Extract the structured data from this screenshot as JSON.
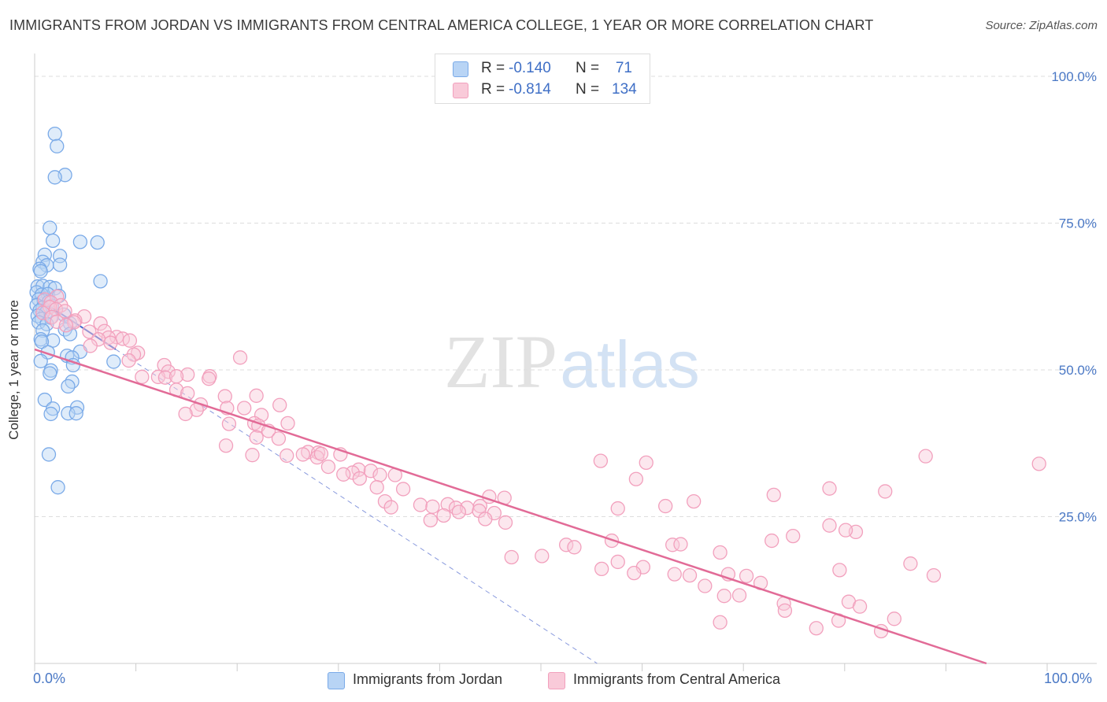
{
  "title": "IMMIGRANTS FROM JORDAN VS IMMIGRANTS FROM CENTRAL AMERICA COLLEGE, 1 YEAR OR MORE CORRELATION CHART",
  "source": "Source: ZipAtlas.com",
  "watermark": {
    "zip": "ZIP",
    "atlas": "atlas"
  },
  "legend": {
    "series1": {
      "r_label": "R = ",
      "r_value": "-0.140",
      "n_label": "N = ",
      "n_value": "71"
    },
    "series2": {
      "r_label": "R = ",
      "r_value": "-0.814",
      "n_label": "N = ",
      "n_value": "134"
    }
  },
  "x_axis": {
    "min_label": "0.0%",
    "max_label": "100.0%"
  },
  "colors": {
    "jordan": "#7aaae8",
    "central_america": "#f2a0bd",
    "jordan_fill": "#b8d4f5",
    "central_america_fill": "#f9cad9",
    "trend_pink": "#e26b97",
    "trend_blue": "#4466cc",
    "tick_text": "#4a78c5"
  },
  "chart_data": {
    "type": "scatter",
    "title": "IMMIGRANTS FROM JORDAN VS IMMIGRANTS FROM CENTRAL AMERICA COLLEGE, 1 YEAR OR MORE CORRELATION CHART",
    "xlabel": "",
    "ylabel": "College, 1 year or more",
    "xlim": [
      0,
      100
    ],
    "ylim": [
      0,
      100
    ],
    "y_ticks": [
      "100.0%",
      "75.0%",
      "50.0%",
      "25.0%"
    ],
    "y_tick_values": [
      100,
      75,
      50,
      25
    ],
    "grid": "horizontal dashed",
    "legend_position": "top-center",
    "series": [
      {
        "name": "Immigrants from Jordan",
        "r": -0.14,
        "n": 71,
        "trend": {
          "x": [
            0,
            8
          ],
          "y": [
            62.5,
            53.5
          ]
        },
        "points": [
          [
            2.0,
            90.2
          ],
          [
            2.2,
            88.1
          ],
          [
            3.0,
            83.2
          ],
          [
            2.0,
            82.8
          ],
          [
            1.5,
            74.2
          ],
          [
            1.8,
            72.0
          ],
          [
            4.5,
            71.8
          ],
          [
            6.2,
            71.7
          ],
          [
            1.0,
            69.6
          ],
          [
            2.5,
            69.4
          ],
          [
            0.8,
            68.4
          ],
          [
            1.2,
            67.8
          ],
          [
            2.5,
            67.9
          ],
          [
            0.5,
            67.2
          ],
          [
            0.6,
            66.8
          ],
          [
            6.5,
            65.1
          ],
          [
            0.3,
            64.2
          ],
          [
            0.8,
            64.3
          ],
          [
            1.5,
            64.1
          ],
          [
            2.0,
            63.9
          ],
          [
            0.2,
            63.2
          ],
          [
            0.7,
            62.8
          ],
          [
            1.3,
            62.9
          ],
          [
            2.4,
            62.6
          ],
          [
            0.4,
            62.0
          ],
          [
            0.9,
            61.8
          ],
          [
            1.4,
            61.6
          ],
          [
            0.2,
            61.0
          ],
          [
            0.8,
            60.6
          ],
          [
            1.7,
            60.9
          ],
          [
            0.5,
            60.1
          ],
          [
            1.1,
            59.7
          ],
          [
            0.3,
            59.2
          ],
          [
            2.9,
            59.4
          ],
          [
            0.7,
            58.7
          ],
          [
            1.6,
            58.9
          ],
          [
            0.4,
            58.1
          ],
          [
            1.2,
            57.8
          ],
          [
            3.5,
            57.9
          ],
          [
            3.0,
            56.9
          ],
          [
            0.8,
            56.7
          ],
          [
            3.5,
            56.1
          ],
          [
            0.6,
            55.2
          ],
          [
            1.8,
            55.0
          ],
          [
            0.7,
            54.8
          ],
          [
            4.5,
            53.1
          ],
          [
            1.3,
            53.0
          ],
          [
            3.2,
            52.4
          ],
          [
            3.7,
            52.1
          ],
          [
            0.6,
            51.5
          ],
          [
            7.8,
            51.4
          ],
          [
            3.8,
            50.8
          ],
          [
            1.6,
            49.9
          ],
          [
            1.5,
            49.4
          ],
          [
            3.7,
            48.0
          ],
          [
            3.3,
            47.2
          ],
          [
            1.0,
            44.9
          ],
          [
            4.2,
            43.6
          ],
          [
            1.8,
            43.4
          ],
          [
            1.6,
            42.5
          ],
          [
            3.3,
            42.6
          ],
          [
            4.1,
            42.6
          ],
          [
            1.4,
            35.6
          ],
          [
            2.3,
            30.0
          ]
        ]
      },
      {
        "name": "Immigrants from Central America",
        "r": -0.814,
        "n": 134,
        "trend": {
          "x": [
            0,
            94
          ],
          "y": [
            53.5,
            0
          ]
        },
        "points": [
          [
            1.0,
            62.0
          ],
          [
            2.2,
            62.5
          ],
          [
            1.6,
            61.5
          ],
          [
            2.6,
            61.0
          ],
          [
            1.5,
            60.7
          ],
          [
            2.1,
            60.3
          ],
          [
            3.0,
            60.0
          ],
          [
            0.8,
            59.7
          ],
          [
            4.9,
            59.1
          ],
          [
            1.7,
            59.0
          ],
          [
            4.0,
            58.4
          ],
          [
            2.2,
            58.2
          ],
          [
            3.9,
            58.1
          ],
          [
            6.5,
            57.9
          ],
          [
            3.1,
            57.6
          ],
          [
            6.9,
            56.6
          ],
          [
            5.4,
            56.5
          ],
          [
            8.1,
            55.6
          ],
          [
            7.3,
            55.5
          ],
          [
            6.3,
            55.2
          ],
          [
            8.7,
            55.3
          ],
          [
            9.4,
            55.0
          ],
          [
            7.5,
            54.6
          ],
          [
            5.5,
            54.1
          ],
          [
            10.2,
            52.9
          ],
          [
            9.8,
            52.6
          ],
          [
            20.3,
            52.1
          ],
          [
            9.3,
            51.6
          ],
          [
            12.8,
            50.8
          ],
          [
            13.2,
            49.7
          ],
          [
            15.1,
            49.2
          ],
          [
            17.3,
            48.9
          ],
          [
            12.2,
            48.8
          ],
          [
            17.2,
            48.5
          ],
          [
            12.9,
            48.7
          ],
          [
            10.6,
            48.8
          ],
          [
            14.0,
            48.9
          ],
          [
            14.0,
            46.6
          ],
          [
            15.1,
            46.0
          ],
          [
            21.9,
            45.6
          ],
          [
            18.8,
            45.5
          ],
          [
            16.4,
            44.1
          ],
          [
            19.0,
            43.5
          ],
          [
            20.7,
            43.5
          ],
          [
            24.2,
            44.0
          ],
          [
            16.0,
            43.2
          ],
          [
            14.9,
            42.5
          ],
          [
            22.4,
            42.3
          ],
          [
            25.0,
            40.9
          ],
          [
            21.7,
            40.9
          ],
          [
            19.2,
            40.8
          ],
          [
            22.1,
            40.5
          ],
          [
            23.1,
            39.6
          ],
          [
            21.9,
            38.5
          ],
          [
            24.1,
            38.3
          ],
          [
            18.9,
            37.1
          ],
          [
            27.0,
            36.0
          ],
          [
            28.0,
            35.9
          ],
          [
            26.5,
            35.6
          ],
          [
            30.2,
            35.6
          ],
          [
            27.9,
            35.1
          ],
          [
            21.5,
            35.5
          ],
          [
            24.9,
            35.4
          ],
          [
            28.3,
            35.7
          ],
          [
            29.0,
            33.5
          ],
          [
            32.0,
            33.0
          ],
          [
            31.4,
            32.5
          ],
          [
            33.2,
            32.8
          ],
          [
            30.5,
            32.2
          ],
          [
            34.1,
            32.1
          ],
          [
            35.6,
            32.1
          ],
          [
            32.1,
            31.5
          ],
          [
            33.8,
            30.0
          ],
          [
            36.4,
            29.7
          ],
          [
            34.6,
            27.6
          ],
          [
            40.8,
            27.1
          ],
          [
            38.1,
            27.0
          ],
          [
            35.2,
            26.6
          ],
          [
            39.3,
            26.7
          ],
          [
            44.0,
            26.8
          ],
          [
            41.6,
            26.5
          ],
          [
            42.7,
            26.5
          ],
          [
            43.9,
            26.0
          ],
          [
            41.9,
            25.8
          ],
          [
            45.4,
            25.6
          ],
          [
            40.4,
            25.2
          ],
          [
            44.5,
            24.6
          ],
          [
            39.1,
            24.4
          ],
          [
            46.5,
            24.0
          ],
          [
            55.9,
            34.5
          ],
          [
            59.4,
            31.4
          ],
          [
            60.4,
            34.2
          ],
          [
            44.9,
            28.4
          ],
          [
            46.4,
            28.2
          ],
          [
            57.6,
            26.4
          ],
          [
            62.3,
            26.8
          ],
          [
            65.1,
            27.6
          ],
          [
            73.0,
            28.7
          ],
          [
            78.5,
            29.8
          ],
          [
            84.0,
            29.3
          ],
          [
            78.5,
            23.5
          ],
          [
            81.1,
            22.4
          ],
          [
            80.1,
            22.7
          ],
          [
            74.9,
            21.7
          ],
          [
            72.8,
            20.9
          ],
          [
            52.5,
            20.2
          ],
          [
            57.0,
            20.9
          ],
          [
            63.0,
            20.2
          ],
          [
            63.8,
            20.3
          ],
          [
            53.3,
            19.8
          ],
          [
            67.7,
            18.9
          ],
          [
            47.1,
            18.1
          ],
          [
            50.1,
            18.3
          ],
          [
            57.6,
            17.3
          ],
          [
            60.1,
            16.4
          ],
          [
            56.0,
            16.1
          ],
          [
            59.2,
            15.4
          ],
          [
            63.2,
            15.2
          ],
          [
            64.7,
            15.0
          ],
          [
            68.5,
            15.2
          ],
          [
            70.3,
            14.9
          ],
          [
            71.7,
            13.7
          ],
          [
            79.5,
            15.9
          ],
          [
            86.5,
            17.0
          ],
          [
            88.8,
            15.0
          ],
          [
            66.2,
            13.2
          ],
          [
            68.1,
            11.5
          ],
          [
            69.6,
            11.6
          ],
          [
            74.0,
            10.2
          ],
          [
            80.4,
            10.5
          ],
          [
            81.5,
            9.7
          ],
          [
            74.1,
            9.0
          ],
          [
            79.4,
            7.3
          ],
          [
            67.7,
            7.0
          ],
          [
            77.2,
            6.0
          ],
          [
            84.9,
            7.6
          ],
          [
            83.6,
            5.5
          ],
          [
            88.0,
            35.3
          ],
          [
            99.2,
            34.0
          ]
        ]
      }
    ]
  }
}
